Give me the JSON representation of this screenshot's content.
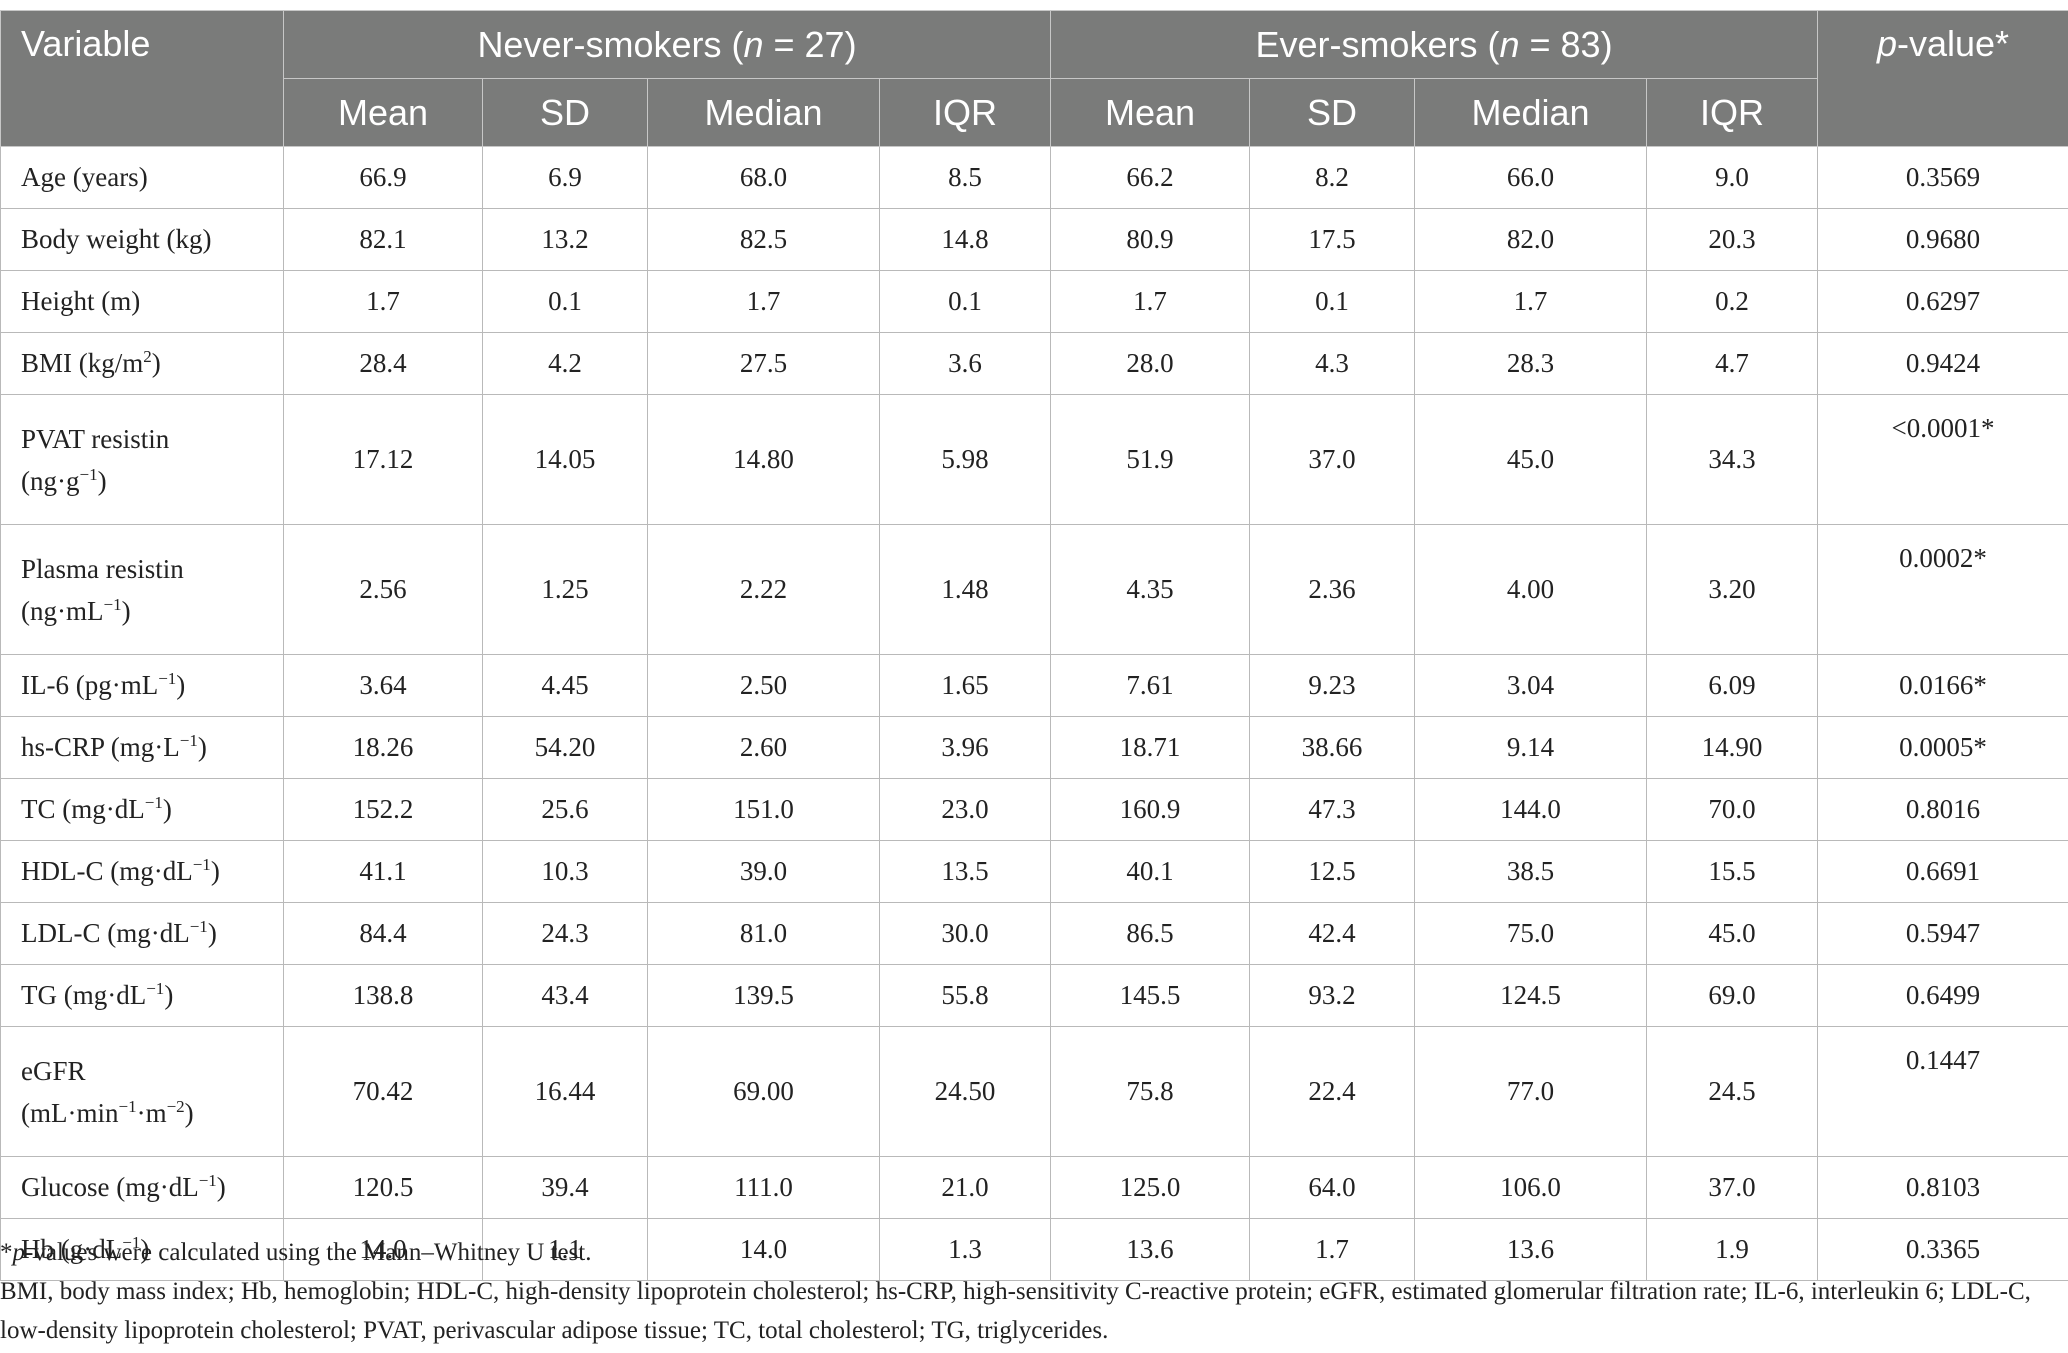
{
  "header": {
    "variable": "Variable",
    "never_group_prefix": "Never-smokers (",
    "never_group_n": "n",
    "never_group_suffix": " = 27)",
    "ever_group_prefix": "Ever-smokers (",
    "ever_group_n": "n",
    "ever_group_suffix": " = 83)",
    "pvalue_italic": "p",
    "pvalue_rest": "-value*",
    "sub": [
      "Mean",
      "SD",
      "Median",
      "IQR",
      "Mean",
      "SD",
      "Median",
      "IQR"
    ]
  },
  "rows": [
    {
      "var": "Age (years)",
      "vals": [
        "66.9",
        "6.9",
        "68.0",
        "8.5",
        "66.2",
        "8.2",
        "66.0",
        "9.0"
      ],
      "p": "0.3569"
    },
    {
      "var": "Body weight (kg)",
      "vals": [
        "82.1",
        "13.2",
        "82.5",
        "14.8",
        "80.9",
        "17.5",
        "82.0",
        "20.3"
      ],
      "p": "0.9680"
    },
    {
      "var": "Height (m)",
      "vals": [
        "1.7",
        "0.1",
        "1.7",
        "0.1",
        "1.7",
        "0.1",
        "1.7",
        "0.2"
      ],
      "p": "0.6297"
    },
    {
      "var_a": "BMI (kg/m",
      "var_sup": "2",
      "var_b": ")",
      "vals": [
        "28.4",
        "4.2",
        "27.5",
        "3.6",
        "28.0",
        "4.3",
        "28.3",
        "4.7"
      ],
      "p": "0.9424"
    },
    {
      "var_l1": "PVAT resistin",
      "var_l2a": "(ng·g",
      "var_l2sup": "−1",
      "var_l2b": ")",
      "vals": [
        "17.12",
        "14.05",
        "14.80",
        "5.98",
        "51.9",
        "37.0",
        "45.0",
        "34.3"
      ],
      "p": "<0.0001*"
    },
    {
      "var_l1": "Plasma resistin",
      "var_l2a": "(ng·mL",
      "var_l2sup": "−1",
      "var_l2b": ")",
      "vals": [
        "2.56",
        "1.25",
        "2.22",
        "1.48",
        "4.35",
        "2.36",
        "4.00",
        "3.20"
      ],
      "p": "0.0002*"
    },
    {
      "var_a": "IL-6 (pg·mL",
      "var_sup": "−1",
      "var_b": ")",
      "vals": [
        "3.64",
        "4.45",
        "2.50",
        "1.65",
        "7.61",
        "9.23",
        "3.04",
        "6.09"
      ],
      "p": "0.0166*"
    },
    {
      "var_a": "hs-CRP (mg·L",
      "var_sup": "−1",
      "var_b": ")",
      "vals": [
        "18.26",
        "54.20",
        "2.60",
        "3.96",
        "18.71",
        "38.66",
        "9.14",
        "14.90"
      ],
      "p": "0.0005*"
    },
    {
      "var_a": "TC (mg·dL",
      "var_sup": "−1",
      "var_b": ")",
      "vals": [
        "152.2",
        "25.6",
        "151.0",
        "23.0",
        "160.9",
        "47.3",
        "144.0",
        "70.0"
      ],
      "p": "0.8016"
    },
    {
      "var_a": "HDL-C (mg·dL",
      "var_sup": "−1",
      "var_b": ")",
      "vals": [
        "41.1",
        "10.3",
        "39.0",
        "13.5",
        "40.1",
        "12.5",
        "38.5",
        "15.5"
      ],
      "p": "0.6691"
    },
    {
      "var_a": "LDL-C (mg·dL",
      "var_sup": "−1",
      "var_b": ")",
      "vals": [
        "84.4",
        "24.3",
        "81.0",
        "30.0",
        "86.5",
        "42.4",
        "75.0",
        "45.0"
      ],
      "p": "0.5947"
    },
    {
      "var_a": "TG (mg·dL",
      "var_sup": "−1",
      "var_b": ")",
      "vals": [
        "138.8",
        "43.4",
        "139.5",
        "55.8",
        "145.5",
        "93.2",
        "124.5",
        "69.0"
      ],
      "p": "0.6499"
    },
    {
      "var_l1": "eGFR",
      "var_l2a": "(mL·min",
      "var_l2sup": "−1",
      "var_l2b": "·m",
      "var_l2sup2": "−2",
      "var_l2c": ")",
      "vals": [
        "70.42",
        "16.44",
        "69.00",
        "24.50",
        "75.8",
        "22.4",
        "77.0",
        "24.5"
      ],
      "p": "0.1447"
    },
    {
      "var_a": "Glucose (mg·dL",
      "var_sup": "−1",
      "var_b": ")",
      "vals": [
        "120.5",
        "39.4",
        "111.0",
        "21.0",
        "125.0",
        "64.0",
        "106.0",
        "37.0"
      ],
      "p": "0.8103"
    },
    {
      "var_a": "Hb (g·dL",
      "var_sup": "−1",
      "var_b": ")",
      "vals": [
        "14.0",
        "1.1",
        "14.0",
        "1.3",
        "13.6",
        "1.7",
        "13.6",
        "1.9"
      ],
      "p": "0.3365"
    }
  ],
  "notes": {
    "note1_star": "*",
    "note1_italic": "p",
    "note1_rest": "-values were calculated using the Mann–Whitney U test.",
    "note2": "BMI, body mass index; Hb, hemoglobin; HDL-C, high-density lipoprotein cholesterol; hs-CRP, high-sensitivity C-reactive protein; eGFR, estimated glomerular filtration rate; IL-6, interleukin 6; LDL-C, low-density lipoprotein cholesterol; PVAT, perivascular adipose tissue; TC, total cholesterol; TG, triglycerides."
  }
}
